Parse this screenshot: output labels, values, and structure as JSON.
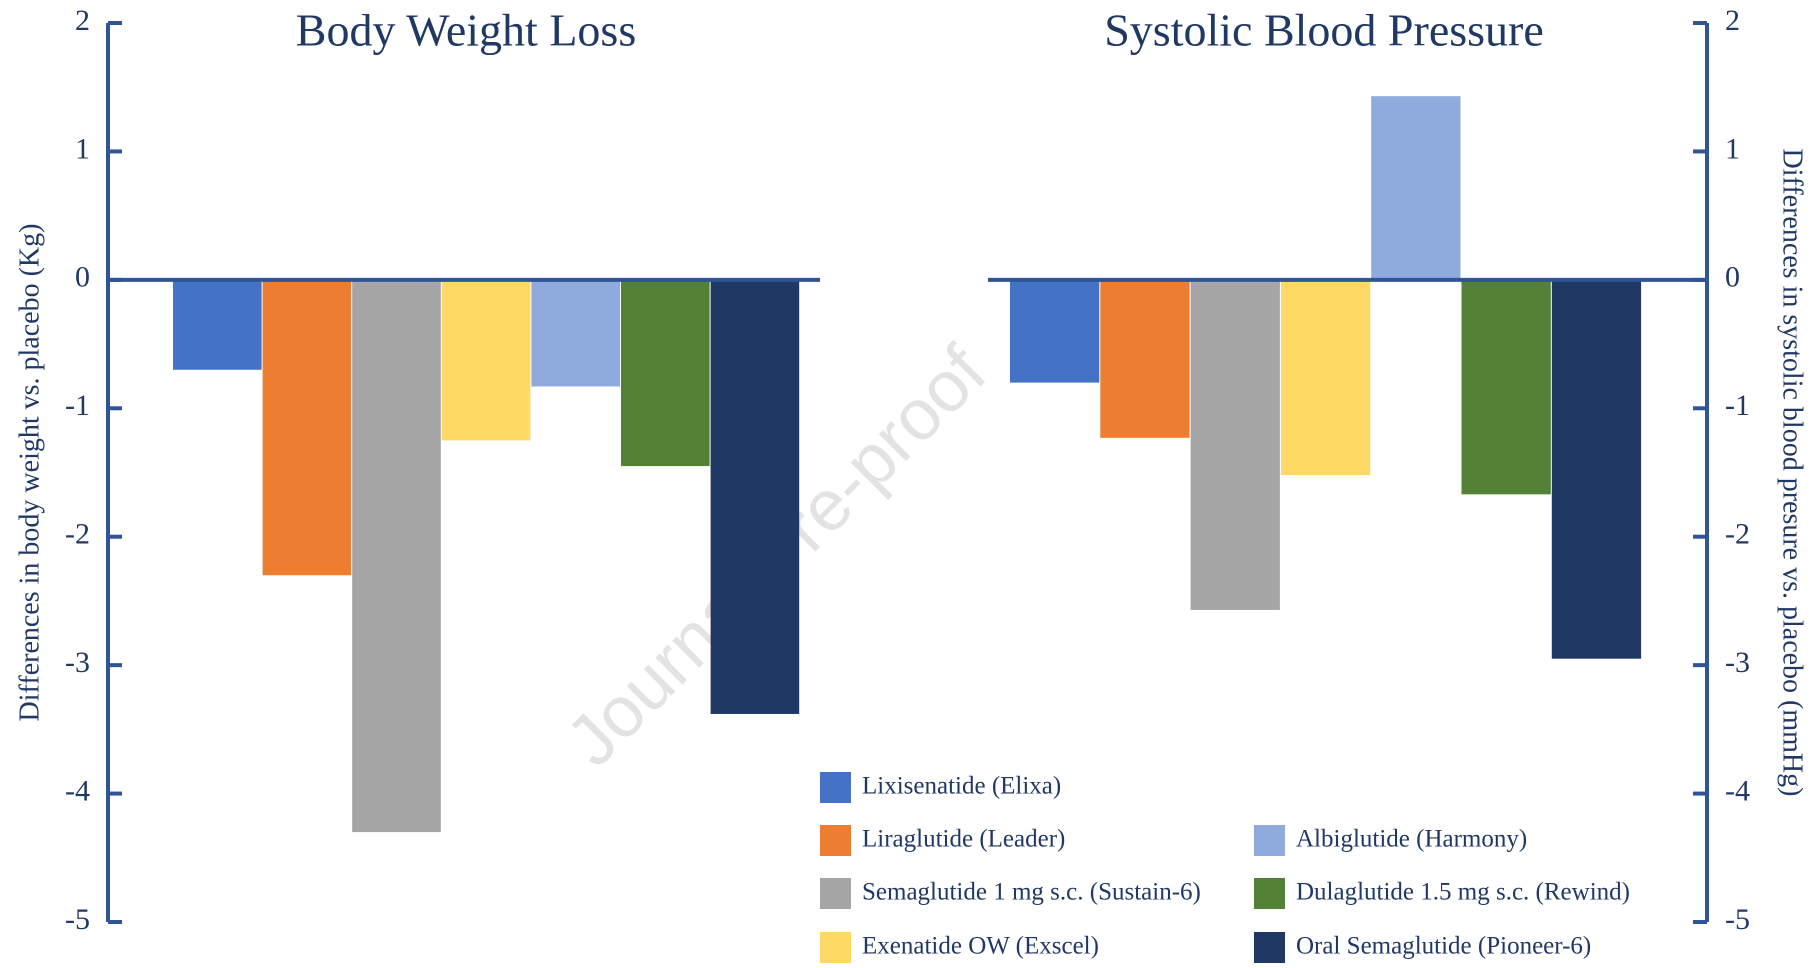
{
  "watermark": "Journal Pre-proof",
  "chart_data": [
    {
      "type": "bar",
      "title": "Body Weight Loss",
      "ylabel": "Differences in body weight vs. placebo (Kg)",
      "ylim": [
        -5,
        2
      ],
      "yticks": [
        -5,
        -4,
        -3,
        -2,
        -1,
        0,
        1,
        2
      ],
      "series": [
        {
          "name": "Lixisenatide (Elixa)",
          "color": "#4472c4",
          "values": [
            -0.7
          ]
        },
        {
          "name": "Liraglutide (Leader)",
          "color": "#ed7d31",
          "values": [
            -2.3
          ]
        },
        {
          "name": "Semaglutide 1 mg s.c. (Sustain-6)",
          "color": "#a5a5a5",
          "values": [
            -4.3
          ]
        },
        {
          "name": "Exenatide OW (Exscel)",
          "color": "#ffd966",
          "values": [
            -1.25
          ]
        },
        {
          "name": "Albiglutide (Harmony)",
          "color": "#8faadc",
          "values": [
            -0.83
          ]
        },
        {
          "name": "Dulaglutide 1.5 mg s.c. (Rewind)",
          "color": "#538135",
          "values": [
            -1.45
          ]
        },
        {
          "name": "Oral Semaglutide (Pioneer-6)",
          "color": "#203864",
          "values": [
            -3.38
          ]
        }
      ]
    },
    {
      "type": "bar",
      "title": "Systolic Blood Pressure",
      "ylabel": "Differences in systolic blood presure vs. placebo (mmHg)",
      "y2lim": [
        -5,
        2
      ],
      "y2ticks": [
        -5,
        -4,
        -3,
        -2,
        -1,
        0,
        1,
        2
      ],
      "series": [
        {
          "axis": "y2",
          "values": [
            -0.8
          ]
        },
        {
          "axis": "y2",
          "values": [
            -1.23
          ]
        },
        {
          "axis": "y2",
          "values": [
            -2.57
          ]
        },
        {
          "axis": "y2",
          "values": [
            -1.52
          ]
        },
        {
          "axis": "y2",
          "values": [
            1.43
          ]
        },
        {
          "axis": "y2",
          "values": [
            -1.67
          ]
        },
        {
          "axis": "y2",
          "values": [
            -2.95
          ]
        }
      ]
    }
  ]
}
